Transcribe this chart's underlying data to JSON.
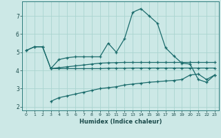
{
  "xlabel": "Humidex (Indice chaleur)",
  "background_color": "#cce8e6",
  "grid_color": "#aad4d0",
  "line_color": "#1a6b6b",
  "xlim": [
    -0.5,
    23.5
  ],
  "ylim": [
    1.8,
    7.8
  ],
  "xticks": [
    0,
    1,
    2,
    3,
    4,
    5,
    6,
    7,
    8,
    9,
    10,
    11,
    12,
    13,
    14,
    15,
    16,
    17,
    18,
    19,
    20,
    21,
    22,
    23
  ],
  "yticks": [
    2,
    3,
    4,
    5,
    6,
    7
  ],
  "line_top_x": [
    0,
    1,
    2,
    3,
    4,
    5,
    6,
    7,
    8,
    9,
    10,
    11,
    12,
    13,
    14,
    15,
    16,
    17,
    18,
    19,
    20,
    21,
    22,
    23
  ],
  "line_top_y": [
    5.1,
    5.3,
    5.3,
    4.1,
    4.6,
    4.7,
    4.75,
    4.75,
    4.75,
    4.75,
    5.5,
    5.0,
    5.75,
    7.2,
    7.4,
    7.0,
    6.6,
    5.25,
    4.8,
    4.4,
    4.35,
    3.5,
    3.35,
    3.75
  ],
  "line_mid1_x": [
    0,
    1,
    2,
    3,
    4,
    5,
    6,
    7,
    8,
    9,
    10,
    11,
    12,
    13,
    14,
    15,
    16,
    17,
    18,
    19,
    20,
    21,
    22,
    23
  ],
  "line_mid1_y": [
    5.1,
    5.3,
    5.3,
    4.1,
    4.15,
    4.2,
    4.25,
    4.3,
    4.35,
    4.4,
    4.42,
    4.43,
    4.44,
    4.44,
    4.44,
    4.44,
    4.44,
    4.44,
    4.44,
    4.44,
    4.44,
    4.44,
    4.44,
    4.44
  ],
  "line_mid2_x": [
    3,
    4,
    5,
    6,
    7,
    8,
    9,
    10,
    11,
    12,
    13,
    14,
    15,
    16,
    17,
    18,
    19,
    20,
    21,
    22,
    23
  ],
  "line_mid2_y": [
    4.1,
    4.1,
    4.1,
    4.1,
    4.1,
    4.1,
    4.1,
    4.12,
    4.12,
    4.12,
    4.13,
    4.13,
    4.13,
    4.13,
    4.13,
    4.13,
    4.13,
    4.13,
    4.13,
    4.13,
    4.13
  ],
  "line_bot_x": [
    3,
    4,
    5,
    6,
    7,
    8,
    9,
    10,
    11,
    12,
    13,
    14,
    15,
    16,
    17,
    18,
    19,
    20,
    21,
    22,
    23
  ],
  "line_bot_y": [
    2.3,
    2.5,
    2.6,
    2.7,
    2.8,
    2.9,
    3.0,
    3.05,
    3.1,
    3.2,
    3.25,
    3.3,
    3.35,
    3.38,
    3.42,
    3.45,
    3.5,
    3.75,
    3.8,
    3.5,
    3.75
  ]
}
